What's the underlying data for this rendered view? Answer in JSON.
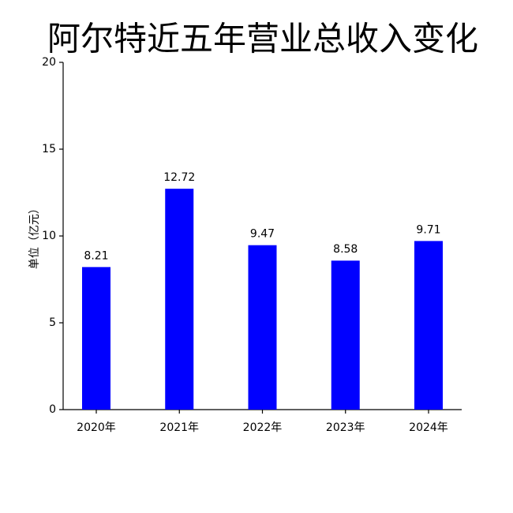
{
  "chart_data": {
    "type": "bar",
    "title": "阿尔特近五年营业总收入变化",
    "y_label": "单位（亿元）",
    "categories": [
      "2020年",
      "2021年",
      "2022年",
      "2023年",
      "2024年"
    ],
    "values": [
      8.21,
      12.72,
      9.47,
      8.58,
      9.71
    ],
    "color": "#0000ff",
    "ylim": [
      0,
      20
    ],
    "yticks": [
      0,
      5,
      10,
      15,
      20
    ]
  }
}
